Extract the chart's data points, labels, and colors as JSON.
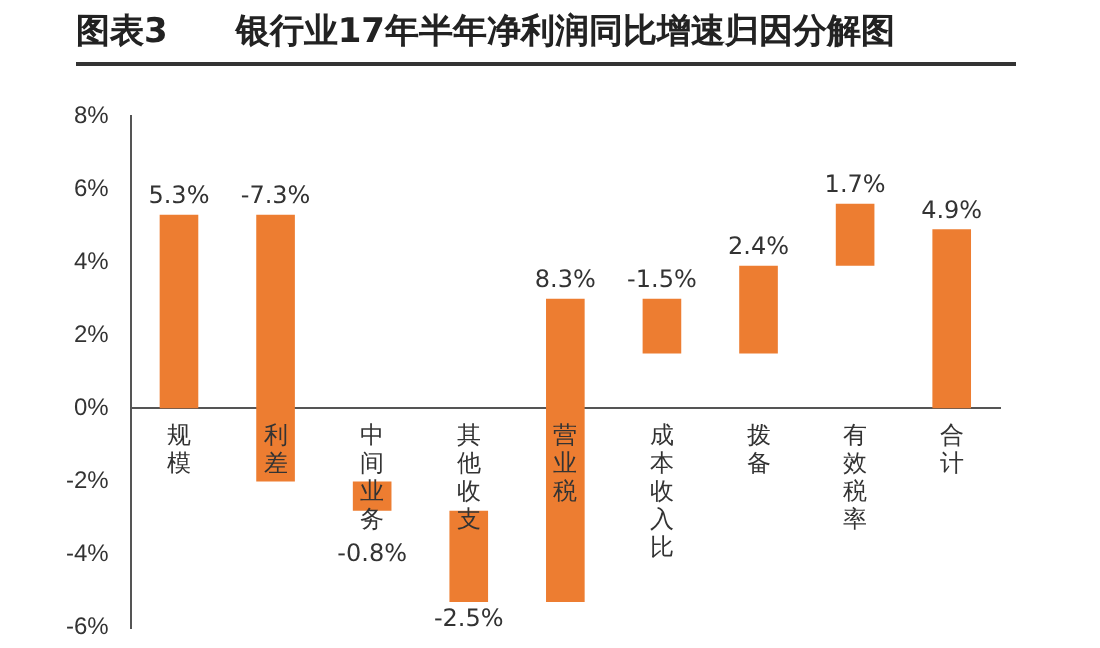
{
  "chart_data": {
    "type": "bar",
    "title": "图表3　　银行业17年半年净利润同比增速归因分解图",
    "categories": [
      "规模",
      "利差",
      "中间业务",
      "其他收支",
      "营业税",
      "成本收入比",
      "拨备",
      "有效税率",
      "合计"
    ],
    "values": [
      5.3,
      -7.3,
      -0.8,
      -2.5,
      8.3,
      -1.5,
      2.4,
      1.7,
      4.9
    ],
    "base": [
      0,
      5.3,
      -2.0,
      -2.8,
      -5.3,
      3.0,
      1.5,
      3.9,
      0
    ],
    "value_labels": [
      "5.3%",
      "-7.3%",
      "-0.8%",
      "-2.5%",
      "8.3%",
      "-1.5%",
      "2.4%",
      "1.7%",
      "4.9%"
    ],
    "color": "#ed7d31",
    "ylim": [
      -6,
      8
    ],
    "yticks": [
      {
        "value": -6,
        "label": "-6%"
      },
      {
        "value": -4,
        "label": "-4%"
      },
      {
        "value": -2,
        "label": "-2%"
      },
      {
        "value": 0,
        "label": "0%"
      },
      {
        "value": 2,
        "label": "2%"
      },
      {
        "value": 4,
        "label": "4%"
      },
      {
        "value": 6,
        "label": "6%"
      },
      {
        "value": 8,
        "label": "8%"
      }
    ],
    "grid": false,
    "legend": false
  }
}
